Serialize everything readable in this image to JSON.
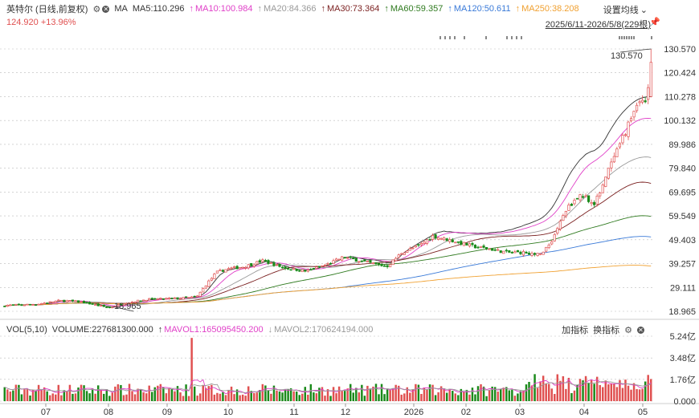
{
  "header": {
    "stock_name": "英特尔 (日线,前复权)",
    "ma_label": "MA",
    "ma_items": [
      {
        "label": "MA5:110.296",
        "color": "#333333"
      },
      {
        "label": "MA10:100.984",
        "color": "#e040c8"
      },
      {
        "label": "MA20:84.366",
        "color": "#999999"
      },
      {
        "label": "MA30:73.364",
        "color": "#7a1f1f"
      },
      {
        "label": "MA60:59.357",
        "color": "#2f7a1f"
      },
      {
        "label": "MA120:50.611",
        "color": "#3a7ad8"
      },
      {
        "label": "MA250:38.208",
        "color": "#f0a030"
      }
    ],
    "arrow_glyph": "↑",
    "settings_label": "设置均线",
    "price_change": "124.920 +13.96%",
    "date_range": "2025/6/11-2026/5/8(229根)"
  },
  "volume_header": {
    "label": "VOL(5,10)",
    "volume": "VOLUME:227681300.000",
    "mavol1": "MAVOL1:165095450.200",
    "mavol2": "MAVOL2:170624194.000",
    "add_indicator": "加指标",
    "switch_indicator": "换指标"
  },
  "annotations": {
    "high": "130.570",
    "low": "18.965"
  },
  "colors": {
    "up": "#e05050",
    "down": "#1a8a1a"
  },
  "chart_data": [
    {
      "type": "candlestick",
      "y_ticks": [
        "130.570",
        "120.424",
        "110.278",
        "100.132",
        "89.986",
        "79.840",
        "69.695",
        "59.549",
        "49.403",
        "39.257",
        "29.111",
        "18.965"
      ],
      "ylim": [
        18.965,
        130.57
      ],
      "x_ticks": [
        "07",
        "08",
        "09",
        "10",
        "11",
        "12",
        "2026",
        "02",
        "03",
        "04",
        "05"
      ],
      "bar_count": 229,
      "series": [
        {
          "name": "MA5",
          "last": 110.296
        },
        {
          "name": "MA10",
          "last": 100.984
        },
        {
          "name": "MA20",
          "last": 84.366
        },
        {
          "name": "MA30",
          "last": 73.364
        },
        {
          "name": "MA60",
          "last": 59.357
        },
        {
          "name": "MA120",
          "last": 50.611
        },
        {
          "name": "MA250",
          "last": 38.208
        }
      ],
      "last_close": 124.92,
      "change_pct": 13.96
    },
    {
      "type": "bar",
      "y_ticks": [
        "5.24亿",
        "3.48亿",
        "1.76亿",
        "0.000"
      ],
      "ylim": [
        0,
        5.24
      ],
      "last_volume": 227681300,
      "mavol1": 165095450.2,
      "mavol2": 170624194
    }
  ]
}
